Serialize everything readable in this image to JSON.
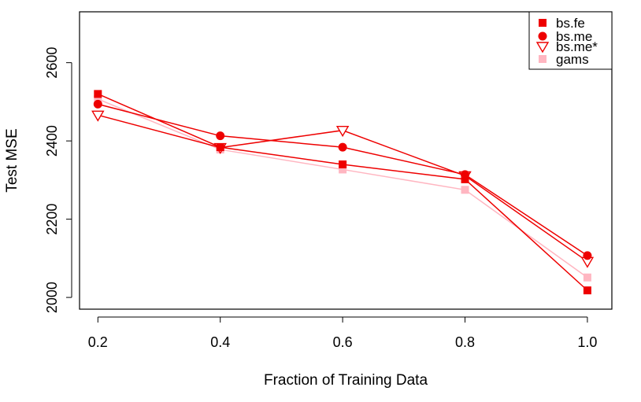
{
  "chart_data": {
    "type": "line",
    "xlabel": "Fraction of Training Data",
    "ylabel": "Test MSE",
    "x": [
      0.2,
      0.4,
      0.6,
      0.8,
      1.0
    ],
    "x_tick_labels": [
      "0.2",
      "0.4",
      "0.6",
      "0.8",
      "1.0"
    ],
    "y_ticks": [
      2000,
      2200,
      2400,
      2600
    ],
    "y_tick_labels": [
      "2000",
      "2200",
      "2400",
      "2600"
    ],
    "xlim": [
      0.17,
      1.04
    ],
    "ylim": [
      1970,
      2730
    ],
    "grid": false,
    "legend_position": "top-right",
    "series": [
      {
        "name": "bs.fe",
        "marker": "square",
        "color": "#ee0000",
        "values": [
          2520,
          2384,
          2340,
          2302,
          2018
        ]
      },
      {
        "name": "bs.me",
        "marker": "circle",
        "color": "#ee0000",
        "values": [
          2494,
          2413,
          2384,
          2314,
          2107
        ]
      },
      {
        "name": "bs.me*",
        "marker": "triangle-down",
        "color": "#ee0000",
        "values": [
          2466,
          2383,
          2427,
          2311,
          2092
        ]
      },
      {
        "name": "gams",
        "marker": "square",
        "color": "#ffb6c1",
        "values": [
          2507,
          2378,
          2327,
          2275,
          2051
        ]
      }
    ]
  }
}
